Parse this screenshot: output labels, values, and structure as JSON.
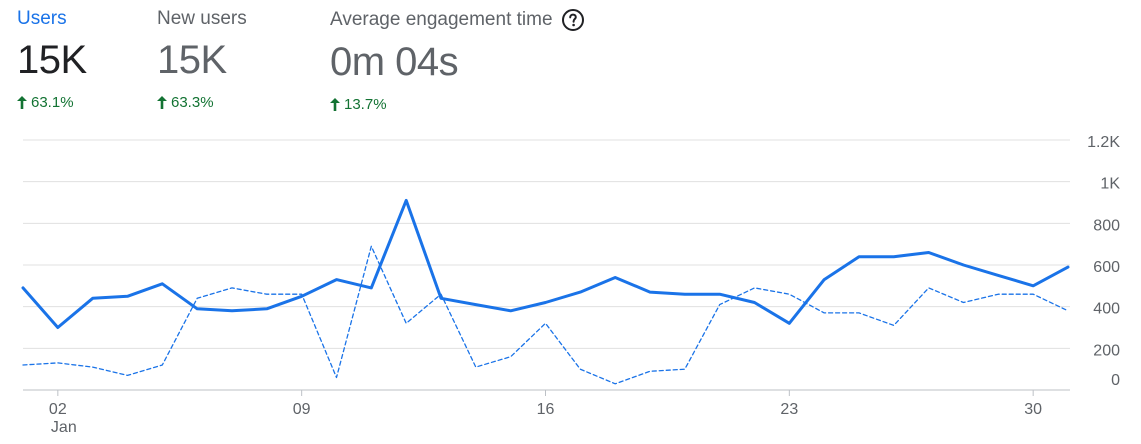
{
  "metrics": [
    {
      "label": "Users",
      "value": "15K",
      "change": "63.1%",
      "active": true
    },
    {
      "label": "New users",
      "value": "15K",
      "change": "63.3%",
      "active": false
    },
    {
      "label": "Average engagement time",
      "value": "0m 04s",
      "change": "13.7%",
      "active": false
    }
  ],
  "icons": {
    "change": "arrow-up-icon",
    "help": "question-circle-icon"
  },
  "colors": {
    "accent": "#1a73e8",
    "positive": "#137333",
    "grid": "#e0e0e0",
    "text_muted": "#5f6368"
  },
  "chart_data": {
    "type": "line",
    "x": [
      1,
      2,
      3,
      4,
      5,
      6,
      7,
      8,
      9,
      10,
      11,
      12,
      13,
      14,
      15,
      16,
      17,
      18,
      19,
      20,
      21,
      22,
      23,
      24,
      25,
      26,
      27,
      28,
      29,
      30,
      31
    ],
    "x_ticks": [
      {
        "value": 2,
        "label": "02",
        "sublabel": "Jan"
      },
      {
        "value": 9,
        "label": "09"
      },
      {
        "value": 16,
        "label": "16"
      },
      {
        "value": 23,
        "label": "23"
      },
      {
        "value": 30,
        "label": "30"
      }
    ],
    "ylim": [
      0,
      1200
    ],
    "y_ticks": [
      0,
      200,
      400,
      600,
      800,
      1000,
      1200
    ],
    "y_tick_labels": [
      "0",
      "200",
      "400",
      "600",
      "800",
      "1K",
      "1.2K"
    ],
    "grid": true,
    "series": [
      {
        "style": "solid",
        "values": [
          490,
          300,
          440,
          450,
          510,
          390,
          380,
          390,
          450,
          530,
          490,
          910,
          440,
          410,
          380,
          420,
          470,
          540,
          470,
          460,
          460,
          420,
          320,
          530,
          640,
          640,
          660,
          600,
          550,
          500,
          590
        ]
      },
      {
        "style": "dashed",
        "values": [
          120,
          130,
          110,
          70,
          120,
          440,
          490,
          460,
          460,
          60,
          690,
          320,
          460,
          110,
          160,
          320,
          100,
          30,
          90,
          100,
          410,
          490,
          460,
          370,
          370,
          310,
          490,
          420,
          460,
          460,
          380
        ]
      }
    ]
  }
}
